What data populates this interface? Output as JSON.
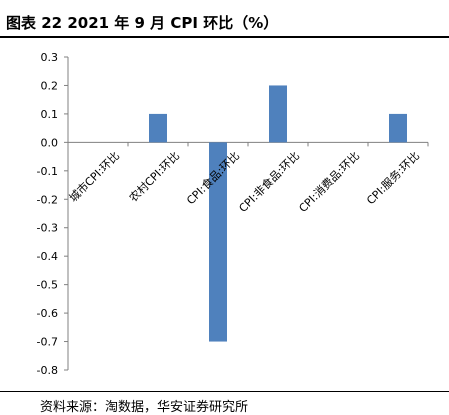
{
  "header": {
    "title": "图表 22 2021 年 9 月 CPI 环比（%）"
  },
  "footer": {
    "source": "资料来源：淘数据，华安证券研究所"
  },
  "chart_data": {
    "type": "bar",
    "categories": [
      "城市CPI:环比",
      "农村CPI:环比",
      "CPI:食品:环比",
      "CPI:非食品:环比",
      "CPI:消费品:环比",
      "CPI:服务:环比"
    ],
    "values": [
      0.0,
      0.1,
      -0.7,
      0.2,
      0.0,
      0.1
    ],
    "ylim": [
      -0.8,
      0.3
    ],
    "yticks": [
      "0.3",
      "0.2",
      "0.1",
      "0.0",
      "-0.1",
      "-0.2",
      "-0.3",
      "-0.4",
      "-0.5",
      "-0.6",
      "-0.7",
      "-0.8"
    ],
    "bar_color": "#4f81bd",
    "grid": false,
    "legend": false
  }
}
